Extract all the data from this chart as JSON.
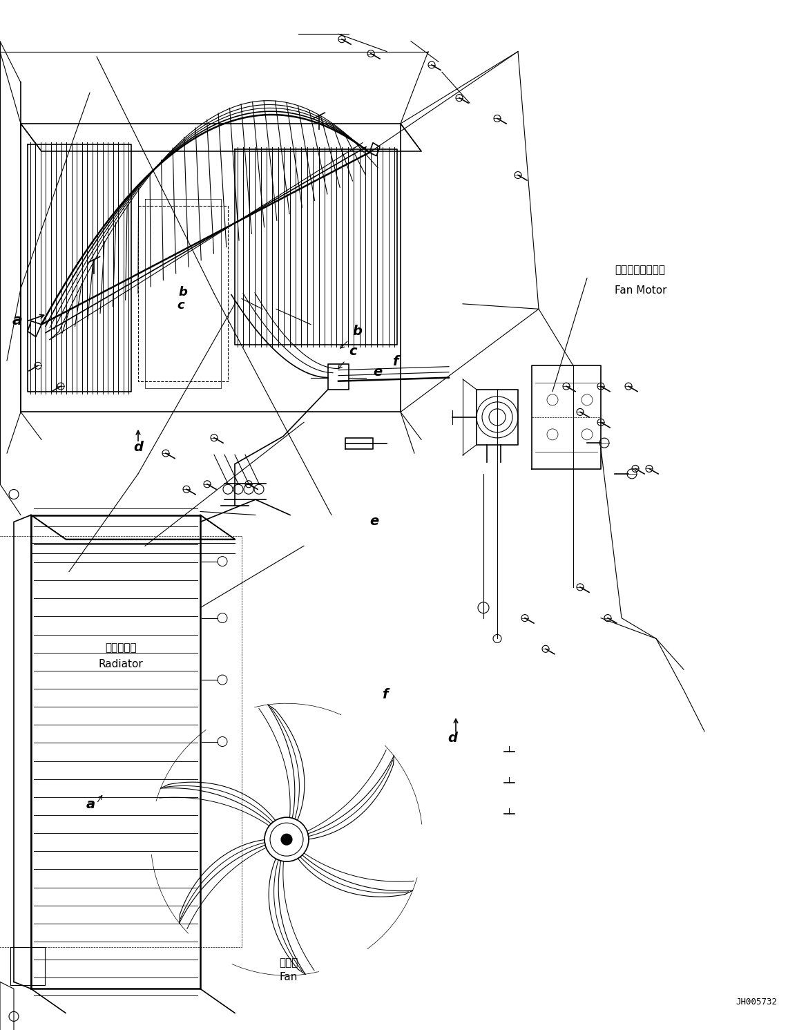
{
  "background_color": "#ffffff",
  "line_color": "#000000",
  "text_color": "#000000",
  "labels": {
    "fan_motor_jp": "インファンモータ",
    "fan_motor_en": "Fan Motor",
    "radiator_jp": "ラジエータ",
    "radiator_en": "Radiator",
    "fan_jp": "ファン",
    "fan_en": "Fan",
    "part_id": "JH005732"
  }
}
